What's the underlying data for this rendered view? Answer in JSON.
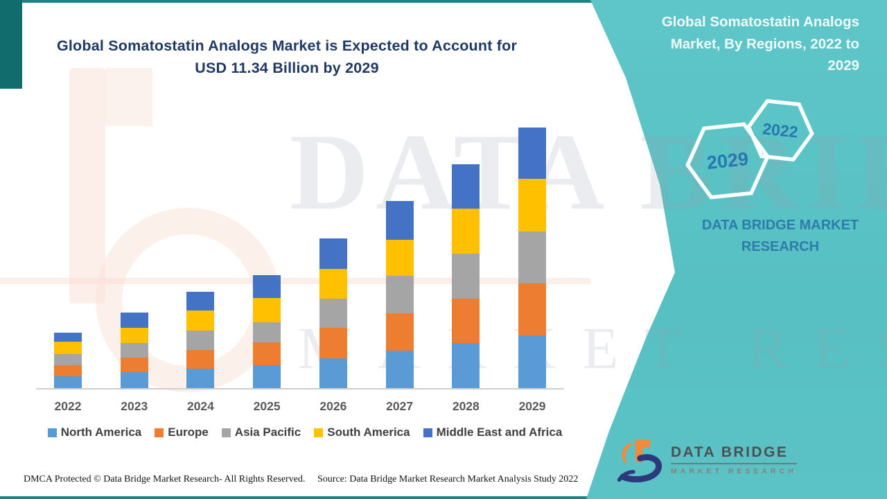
{
  "title": {
    "line1": "Global Somatostatin Analogs Market is Expected to Account for",
    "line2": "USD 11.34 Billion by 2029"
  },
  "side_panel": {
    "title_line1": "Global Somatostatin Analogs",
    "title_line2": "Market, By Regions, 2022 to",
    "title_line3": "2029",
    "hexagon_front_year": "2029",
    "hexagon_back_year": "2022",
    "brand_text": "DATA BRIDGE MARKET RESEARCH",
    "accent_color": "#5BC2C4"
  },
  "chart_data": {
    "type": "bar",
    "stacked": true,
    "unit": "USD Billion",
    "title": "Global Somatostatin Analogs Market, By Regions, 2022 to 2029",
    "categories": [
      "2022",
      "2023",
      "2024",
      "2025",
      "2026",
      "2027",
      "2028",
      "2029"
    ],
    "series": [
      {
        "name": "North America",
        "color": "#5B9BD5",
        "values": [
          0.5,
          0.7,
          0.85,
          1.0,
          1.3,
          1.62,
          1.95,
          2.29
        ]
      },
      {
        "name": "Europe",
        "color": "#ED7D31",
        "values": [
          0.5,
          0.62,
          0.82,
          0.98,
          1.31,
          1.64,
          1.95,
          2.26
        ]
      },
      {
        "name": "Asia Pacific",
        "color": "#A5A5A5",
        "values": [
          0.47,
          0.64,
          0.84,
          0.89,
          1.29,
          1.63,
          1.94,
          2.27
        ]
      },
      {
        "name": "South America",
        "color": "#FFC000",
        "values": [
          0.55,
          0.65,
          0.86,
          1.06,
          1.28,
          1.57,
          1.96,
          2.27
        ]
      },
      {
        "name": "Middle East and Africa",
        "color": "#4472C4",
        "values": [
          0.4,
          0.66,
          0.81,
          0.99,
          1.34,
          1.67,
          1.94,
          2.25
        ]
      }
    ],
    "totals": [
      2.42,
      3.27,
      4.18,
      4.92,
      6.52,
      8.13,
      9.74,
      11.34
    ],
    "xlabel": "",
    "ylabel": "",
    "y_axis_visible": false,
    "grid": false,
    "legend_position": "bottom"
  },
  "watermark": {
    "line1": "DATA BRIDGE",
    "line2": "MARKET RESEARCH"
  },
  "footer": {
    "dmca_text": "DMCA Protected © Data Bridge Market Research- All Rights Reserved.",
    "source_text": "Source: Data Bridge Market Research Market Analysis Study 2022",
    "logo_title": "DATA BRIDGE",
    "logo_subtitle": "MARKET RESEARCH"
  }
}
